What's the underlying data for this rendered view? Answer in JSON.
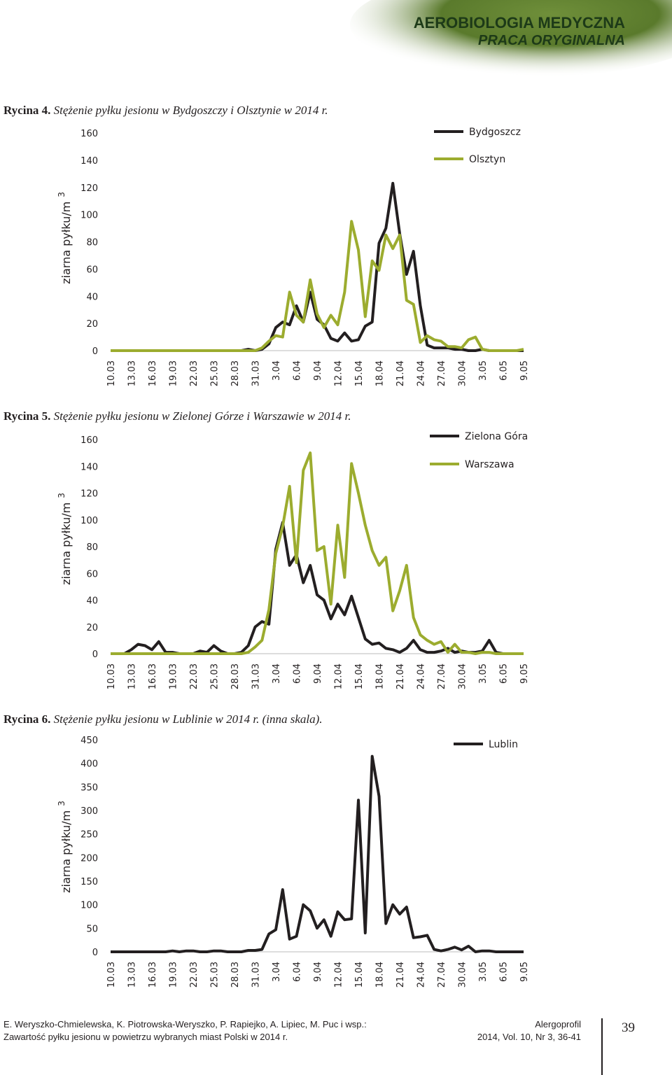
{
  "header": {
    "title": "AEROBIOLOGIA MEDYCZNA",
    "subtitle": "PRACA ORYGINALNA"
  },
  "chart_data": [
    {
      "type": "line",
      "title_label": "Rycina 4.",
      "title": "Stężenie pyłku jesionu w Bydgoszczy i Olsztynie w 2014 r.",
      "y_label": "ziarna pyłku/m",
      "y_label_exponent": "3",
      "categories": [
        "10.03",
        null,
        null,
        "13.03",
        null,
        null,
        "16.03",
        null,
        null,
        "19.03",
        null,
        null,
        "22.03",
        null,
        null,
        "25.03",
        null,
        null,
        "28.03",
        null,
        null,
        "31.03",
        null,
        null,
        "3.04",
        null,
        null,
        "6.04",
        null,
        null,
        "9.04",
        null,
        null,
        "12.04",
        null,
        null,
        "15.04",
        null,
        null,
        "18.04",
        null,
        null,
        "21.04",
        null,
        null,
        "24.04",
        null,
        null,
        "27.04",
        null,
        null,
        "30.04",
        null,
        null,
        "3.05",
        null,
        null,
        "6.05",
        null,
        null,
        "9.05"
      ],
      "ylim": [
        0,
        160
      ],
      "yticks": [
        0,
        20,
        40,
        60,
        80,
        100,
        120,
        140,
        160
      ],
      "legend": "upper right",
      "series": [
        {
          "name": "Bydgoszcz",
          "color": "#231f20",
          "values": [
            0,
            0,
            0,
            0,
            0,
            0,
            0,
            0,
            0,
            0,
            0,
            0,
            0,
            0,
            0,
            0,
            0,
            0,
            0,
            0,
            1,
            0,
            1,
            5,
            17,
            21,
            19,
            33,
            21,
            43,
            23,
            19,
            9,
            7,
            13,
            7,
            8,
            18,
            21,
            79,
            90,
            123,
            86,
            56,
            73,
            33,
            4,
            2,
            2,
            2,
            1,
            1,
            0,
            0,
            1,
            0,
            0,
            0,
            0,
            0,
            0
          ]
        },
        {
          "name": "Olsztyn",
          "color": "#9cac2f",
          "values": [
            0,
            0,
            0,
            0,
            0,
            0,
            0,
            0,
            0,
            0,
            0,
            0,
            0,
            0,
            0,
            0,
            0,
            0,
            0,
            0,
            0,
            0,
            2,
            7,
            11,
            10,
            43,
            26,
            21,
            52,
            27,
            17,
            26,
            19,
            43,
            95,
            74,
            25,
            66,
            59,
            85,
            75,
            85,
            37,
            34,
            6,
            11,
            8,
            7,
            3,
            3,
            2,
            8,
            10,
            1,
            0,
            0,
            0,
            0,
            0,
            1
          ]
        }
      ]
    },
    {
      "type": "line",
      "title_label": "Rycina 5.",
      "title": "Stężenie pyłku jesionu w Zielonej Górze i Warszawie w 2014 r.",
      "y_label": "ziarna pyłku/m",
      "y_label_exponent": "3",
      "categories": [
        "10.03",
        null,
        null,
        "13.03",
        null,
        null,
        "16.03",
        null,
        null,
        "19.03",
        null,
        null,
        "22.03",
        null,
        null,
        "25.03",
        null,
        null,
        "28.03",
        null,
        null,
        "31.03",
        null,
        null,
        "3.04",
        null,
        null,
        "6.04",
        null,
        null,
        "9.04",
        null,
        null,
        "12.04",
        null,
        null,
        "15.04",
        null,
        null,
        "18.04",
        null,
        null,
        "21.04",
        null,
        null,
        "24.04",
        null,
        null,
        "27.04",
        null,
        null,
        "30.04",
        null,
        null,
        "3.05",
        null,
        null,
        "6.05",
        null,
        null,
        "9.05"
      ],
      "ylim": [
        0,
        160
      ],
      "yticks": [
        0,
        20,
        40,
        60,
        80,
        100,
        120,
        140,
        160
      ],
      "legend": "upper right",
      "series": [
        {
          "name": "Zielona Góra",
          "color": "#231f20",
          "values": [
            0,
            0,
            0,
            3,
            7,
            6,
            3,
            9,
            1,
            1,
            0,
            0,
            0,
            2,
            1,
            6,
            2,
            0,
            0,
            1,
            6,
            20,
            24,
            22,
            78,
            98,
            66,
            74,
            53,
            66,
            44,
            40,
            26,
            37,
            29,
            43,
            27,
            11,
            7,
            8,
            4,
            3,
            1,
            4,
            10,
            3,
            1,
            1,
            2,
            4,
            1,
            2,
            1,
            1,
            2,
            10,
            1,
            0,
            0,
            0,
            0
          ]
        },
        {
          "name": "Warszawa",
          "color": "#9cac2f",
          "values": [
            0,
            0,
            0,
            0,
            0,
            0,
            0,
            0,
            0,
            0,
            0,
            0,
            0,
            0,
            0,
            0,
            0,
            0,
            0,
            0,
            1,
            5,
            10,
            33,
            75,
            95,
            125,
            68,
            137,
            150,
            77,
            80,
            37,
            96,
            57,
            142,
            120,
            96,
            77,
            66,
            72,
            32,
            47,
            66,
            27,
            14,
            10,
            7,
            9,
            1,
            7,
            1,
            1,
            0,
            1,
            1,
            0,
            0,
            0,
            0,
            0
          ]
        }
      ]
    },
    {
      "type": "line",
      "title_label": "Rycina 6.",
      "title": "Stężenie pyłku jesionu w Lublinie w 2014 r. (inna skala).",
      "y_label": "ziarna pyłku/m",
      "y_label_exponent": "3",
      "categories": [
        "10.03",
        null,
        null,
        "13.03",
        null,
        null,
        "16.03",
        null,
        null,
        "19.03",
        null,
        null,
        "22.03",
        null,
        null,
        "25.03",
        null,
        null,
        "28.03",
        null,
        null,
        "31.03",
        null,
        null,
        "3.04",
        null,
        null,
        "6.04",
        null,
        null,
        "9.04",
        null,
        null,
        "12.04",
        null,
        null,
        "15.04",
        null,
        null,
        "18.04",
        null,
        null,
        "21.04",
        null,
        null,
        "24.04",
        null,
        null,
        "27.04",
        null,
        null,
        "30.04",
        null,
        null,
        "3.05",
        null,
        null,
        "6.05",
        null,
        null,
        "9.05"
      ],
      "ylim": [
        0,
        450
      ],
      "yticks": [
        0,
        50,
        100,
        150,
        200,
        250,
        300,
        350,
        400,
        450
      ],
      "legend": "upper right",
      "series": [
        {
          "name": "Lublin",
          "color": "#231f20",
          "values": [
            0,
            0,
            0,
            0,
            0,
            0,
            0,
            0,
            0,
            2,
            0,
            2,
            2,
            0,
            0,
            2,
            2,
            0,
            0,
            0,
            3,
            3,
            5,
            38,
            47,
            132,
            27,
            33,
            100,
            87,
            50,
            68,
            33,
            85,
            68,
            70,
            322,
            40,
            415,
            330,
            60,
            100,
            80,
            95,
            30,
            32,
            35,
            5,
            2,
            5,
            10,
            4,
            12,
            0,
            2,
            2,
            0,
            0,
            0,
            0,
            0
          ]
        }
      ]
    }
  ],
  "footer": {
    "authors": "E. Weryszko-Chmielewska, K. Piotrowska-Weryszko, P. Rapiejko, A. Lipiec, M. Puc i wsp.:",
    "article": "Zawartość pyłku jesionu w powietrzu wybranych miast Polski w 2014 r.",
    "journal": "Alergoprofil",
    "issue": "2014, Vol. 10, Nr 3, 36-41",
    "page": "39"
  }
}
